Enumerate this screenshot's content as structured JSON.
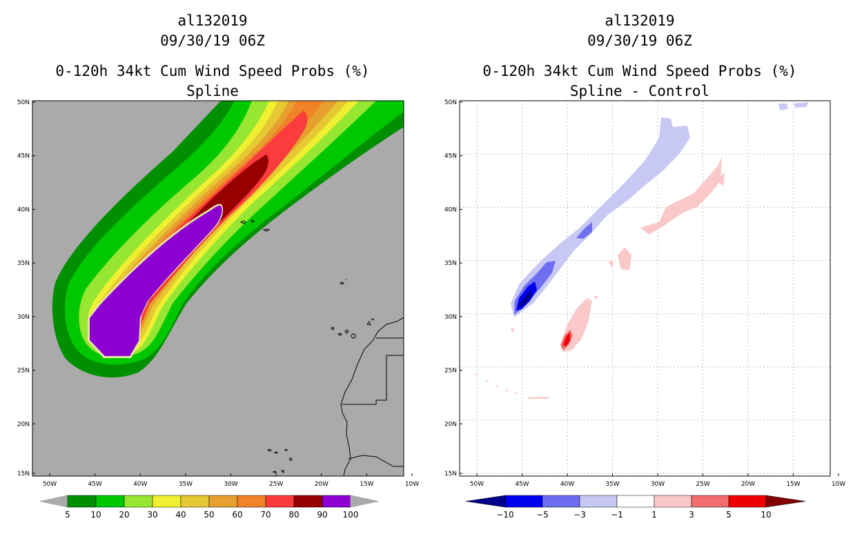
{
  "panels": [
    {
      "storm_id": "al132019",
      "datetime": "09/30/19 06Z",
      "product": "0-120h 34kt Cum Wind Speed Probs (%)",
      "subtitle": "Spline",
      "lat_labels": [
        "50N",
        "45N",
        "40N",
        "35N",
        "30N",
        "25N",
        "20N",
        "15N"
      ],
      "lon_labels": [
        "50W",
        "45W",
        "40W",
        "35W",
        "30W",
        "25W",
        "20W",
        "15W",
        "10W"
      ],
      "colorbar": {
        "labels": [
          "5",
          "10",
          "20",
          "30",
          "40",
          "50",
          "60",
          "70",
          "80",
          "90",
          "100"
        ],
        "colors": [
          "#008f00",
          "#00c800",
          "#96e632",
          "#f0f032",
          "#e6c832",
          "#e6a030",
          "#f08228",
          "#fa3c3c",
          "#960000",
          "#8c00d2"
        ]
      }
    },
    {
      "storm_id": "al132019",
      "datetime": "09/30/19 06Z",
      "product": "0-120h 34kt Cum Wind Speed Probs (%)",
      "subtitle": "Spline - Control",
      "lat_labels": [
        "50N",
        "45N",
        "40N",
        "35N",
        "30N",
        "25N",
        "20N",
        "15N"
      ],
      "lon_labels": [
        "50W",
        "45W",
        "40W",
        "35W",
        "30W",
        "25W",
        "20W",
        "15W",
        "10W"
      ],
      "colorbar": {
        "labels": [
          "−10",
          "−5",
          "−3",
          "−1",
          "1",
          "3",
          "5",
          "10"
        ],
        "colors": [
          "#00008c",
          "#0000f0",
          "#6e6ef0",
          "#c8c8f5",
          "#ffffff",
          "#fac8c8",
          "#f06e6e",
          "#f00000",
          "#820000"
        ]
      }
    }
  ],
  "colors": {
    "ocean_left": "#aaaaaa",
    "ocean_right": "#ffffff"
  }
}
